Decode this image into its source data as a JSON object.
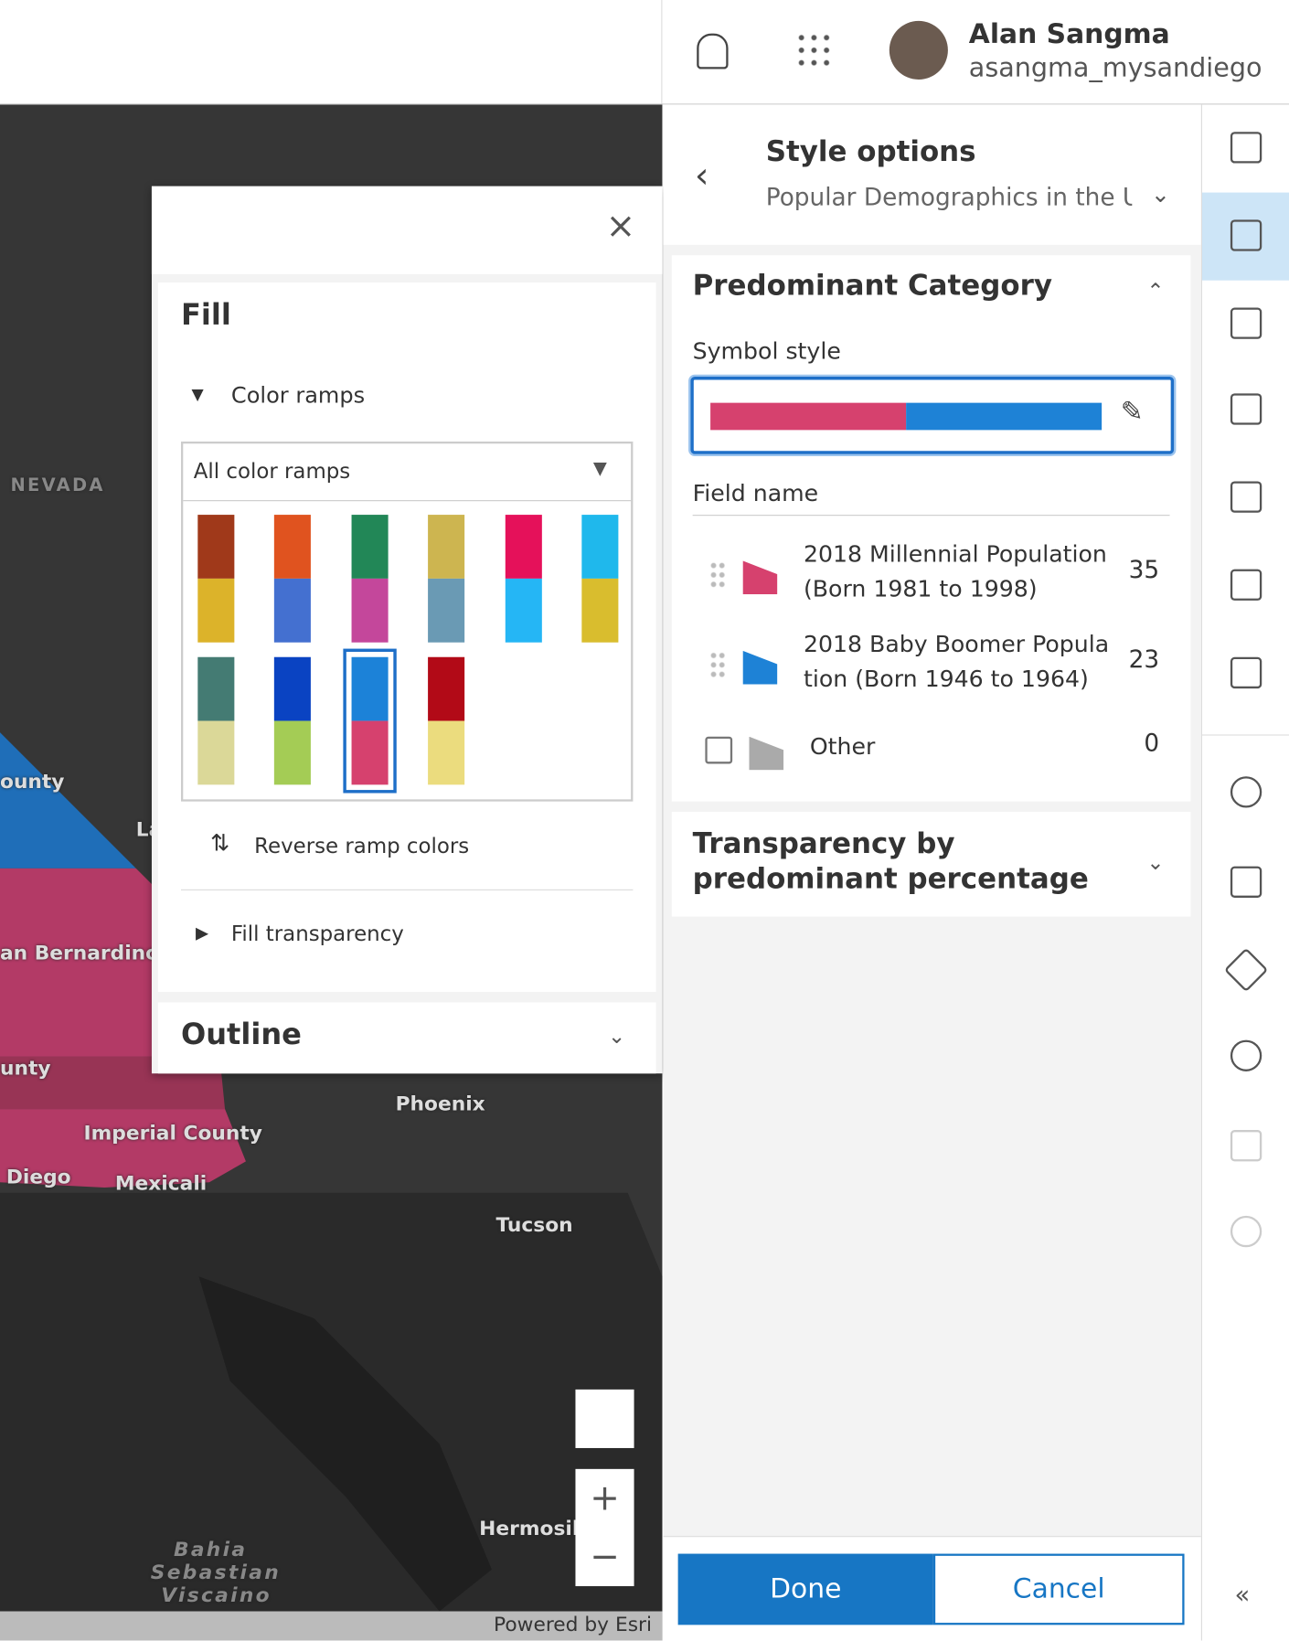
{
  "header": {
    "user_name": "Alan Sangma",
    "user_id": "asangma_mysandiego"
  },
  "map": {
    "labels": [
      "NEVADA",
      "ounty",
      "La",
      "an Bernardino C",
      "unty",
      "Imperial County",
      "Diego",
      "Mexicali",
      "Phoenix",
      "Tucson",
      "Hermosill",
      "Bahia",
      "Sebastian",
      "Viscaino"
    ],
    "attribution": "Powered by Esri"
  },
  "fill_panel": {
    "title": "Fill",
    "color_ramps_label": "Color ramps",
    "ramp_filter": "All color ramps",
    "ramps": [
      [
        "#a0391a",
        "#dcb32a"
      ],
      [
        "#e0531f",
        "#4470d0"
      ],
      [
        "#228757",
        "#c4479b"
      ],
      [
        "#cdb550",
        "#6a9ab4"
      ],
      [
        "#e5115a",
        "#25b6f5"
      ],
      [
        "#1fb8ec",
        "#d9bd2e"
      ],
      [
        "#447b73",
        "#dbd898"
      ],
      [
        "#0a43c2",
        "#a4cc55"
      ],
      [
        "#1c82d8",
        "#d6416e"
      ],
      [
        "#b20a17",
        "#ebdc7e"
      ]
    ],
    "selected_ramp": 8,
    "reverse_label": "Reverse ramp colors",
    "transparency_label": "Fill transparency",
    "outline_title": "Outline"
  },
  "style_panel": {
    "title": "Style options",
    "layer": "Popular Demographics in the U",
    "section": "Predominant Category",
    "symbol_style_label": "Symbol style",
    "symbol_colors": [
      "#d6416e",
      "#1e82d6"
    ],
    "field_label": "Field name",
    "fields": [
      {
        "name": "2018 Millennial Population (Born 1981 to 1998)",
        "value": 35,
        "color": "#d6416e"
      },
      {
        "name": "2018 Baby Boomer Population (Born 1946 to 1964)",
        "value": 23,
        "color": "#1e82d6"
      },
      {
        "name": "Other",
        "value": 0,
        "color": "#aaaaaa"
      }
    ],
    "transparency_section": "Transparency by predominant percentage",
    "done": "Done",
    "cancel": "Cancel"
  }
}
